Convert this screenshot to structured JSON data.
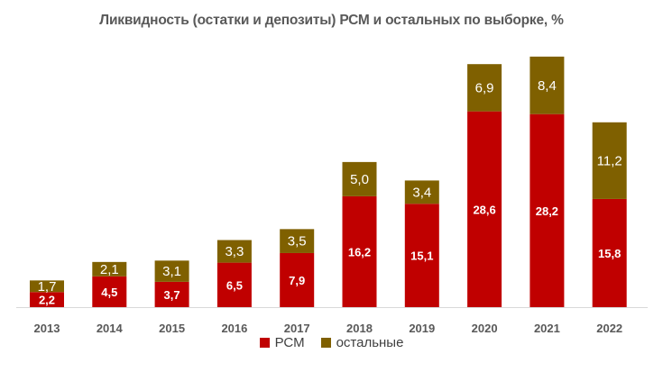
{
  "chart_data": {
    "type": "bar",
    "stacked": true,
    "title": "Ликвидность (остатки и депозиты) РСМ и остальных по выборке, %",
    "categories": [
      "2013",
      "2014",
      "2015",
      "2016",
      "2017",
      "2018",
      "2019",
      "2020",
      "2021",
      "2022"
    ],
    "series": [
      {
        "name": "РСМ",
        "color": "#c00000",
        "values": [
          2.2,
          4.5,
          3.7,
          6.5,
          7.9,
          16.2,
          15.1,
          28.6,
          28.2,
          15.8
        ],
        "labels": [
          "2,2",
          "4,5",
          "3,7",
          "6,5",
          "7,9",
          "16,2",
          "15,1",
          "28,6",
          "28,2",
          "15,8"
        ]
      },
      {
        "name": "остальные",
        "color": "#7f6000",
        "values": [
          1.7,
          2.1,
          3.1,
          3.3,
          3.5,
          5.0,
          3.4,
          6.9,
          8.4,
          11.2
        ],
        "labels": [
          "1,7",
          "2,1",
          "3,1",
          "3,3",
          "3,5",
          "5,0",
          "3,4",
          "6,9",
          "8,4",
          "11,2"
        ]
      }
    ],
    "legend_position": "bottom",
    "grid": false
  }
}
